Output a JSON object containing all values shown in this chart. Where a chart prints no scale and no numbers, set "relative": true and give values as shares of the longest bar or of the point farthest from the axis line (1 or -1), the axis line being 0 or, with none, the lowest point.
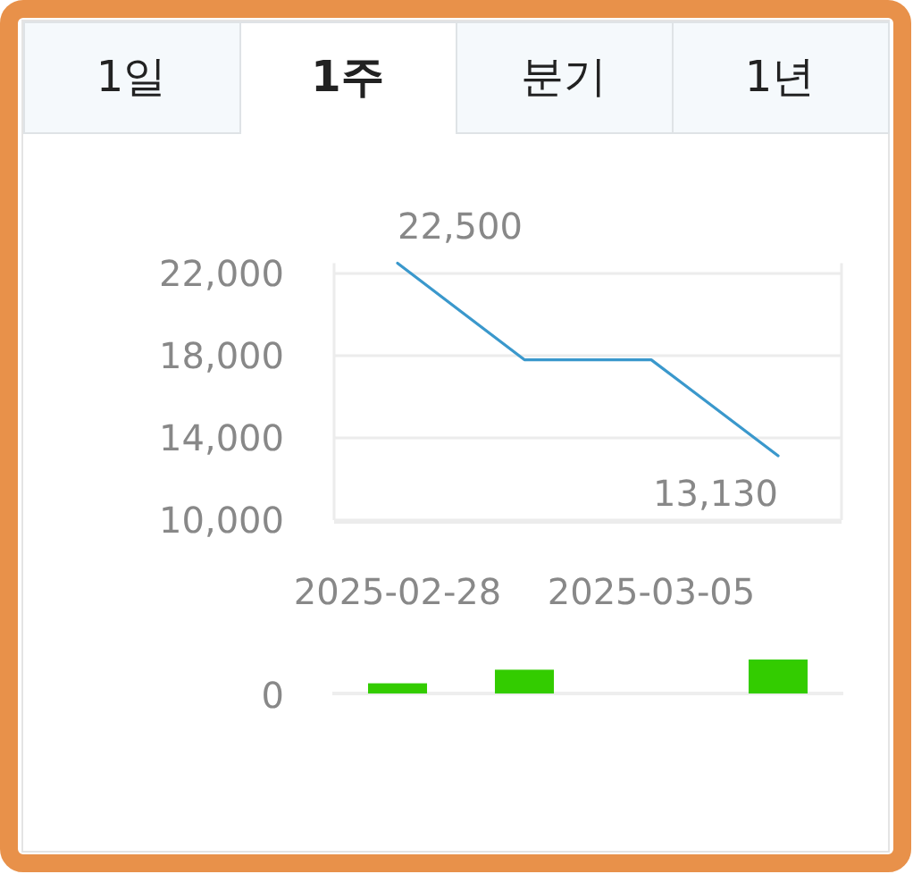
{
  "chart_data": [
    {
      "type": "other",
      "annotations": [
        "1일",
        "1주",
        "분기",
        "1년"
      ]
    },
    {
      "type": "line",
      "categories": [
        "2025-02-28",
        null,
        "2025-03-05",
        null
      ],
      "values": [
        22500,
        17800,
        17800,
        13130
      ],
      "color": "#3a98cc",
      "value_labels": [
        "22,500",
        null,
        null,
        "13,130"
      ],
      "ylim": [
        10000,
        22500
      ],
      "yticks": [
        {
          "value": 10000,
          "label": "10,000"
        },
        {
          "value": 14000,
          "label": "14,000"
        },
        {
          "value": 18000,
          "label": "18,000"
        },
        {
          "value": 22000,
          "label": "22,000"
        }
      ],
      "grid": "y"
    },
    {
      "type": "bar",
      "relative": true,
      "categories": [
        null,
        null,
        null,
        null
      ],
      "values": [
        0.3,
        0.7,
        0,
        1
      ],
      "color": "#33cc00",
      "annotations": [
        "0"
      ]
    }
  ]
}
